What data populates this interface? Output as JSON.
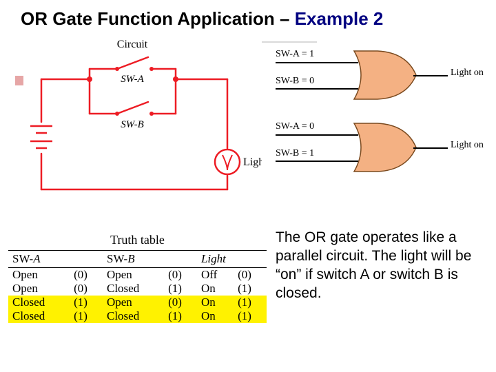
{
  "title_prefix": "OR Gate Function Application – ",
  "title_emph": "Example 2",
  "circuit": {
    "label_top": "Circuit",
    "sw_a": "SW-A",
    "sw_b": "SW-B",
    "light": "Light",
    "wire_color": "#ed1c24",
    "node_color": "#ed1c24"
  },
  "gates": {
    "gate_fill": "#f4b183",
    "gate_stroke": "#7a4a1f",
    "line_color": "#000000",
    "g1": {
      "in_a": "SW-A = 1",
      "in_b": "SW-B = 0",
      "out": "Light on"
    },
    "g2": {
      "in_a": "SW-A = 0",
      "in_b": "SW-B = 1",
      "out": "Light on"
    }
  },
  "truth": {
    "caption": "Truth table",
    "h1": "SW-A",
    "h2": "SW-B",
    "h3": "Light",
    "rows": [
      {
        "a_txt": "Open",
        "a_v": "(0)",
        "b_txt": "Open",
        "b_v": "(0)",
        "l_txt": "Off",
        "l_v": "(0)",
        "hl": false
      },
      {
        "a_txt": "Open",
        "a_v": "(0)",
        "b_txt": "Closed",
        "b_v": "(1)",
        "l_txt": "On",
        "l_v": "(1)",
        "hl": false
      },
      {
        "a_txt": "Closed",
        "a_v": "(1)",
        "b_txt": "Open",
        "b_v": "(0)",
        "l_txt": "On",
        "l_v": "(1)",
        "hl": true
      },
      {
        "a_txt": "Closed",
        "a_v": "(1)",
        "b_txt": "Closed",
        "b_v": "(1)",
        "l_txt": "On",
        "l_v": "(1)",
        "hl": true
      }
    ]
  },
  "explanation": "The OR gate operates like a parallel circuit. The light will be “on” if switch A or switch B is closed."
}
